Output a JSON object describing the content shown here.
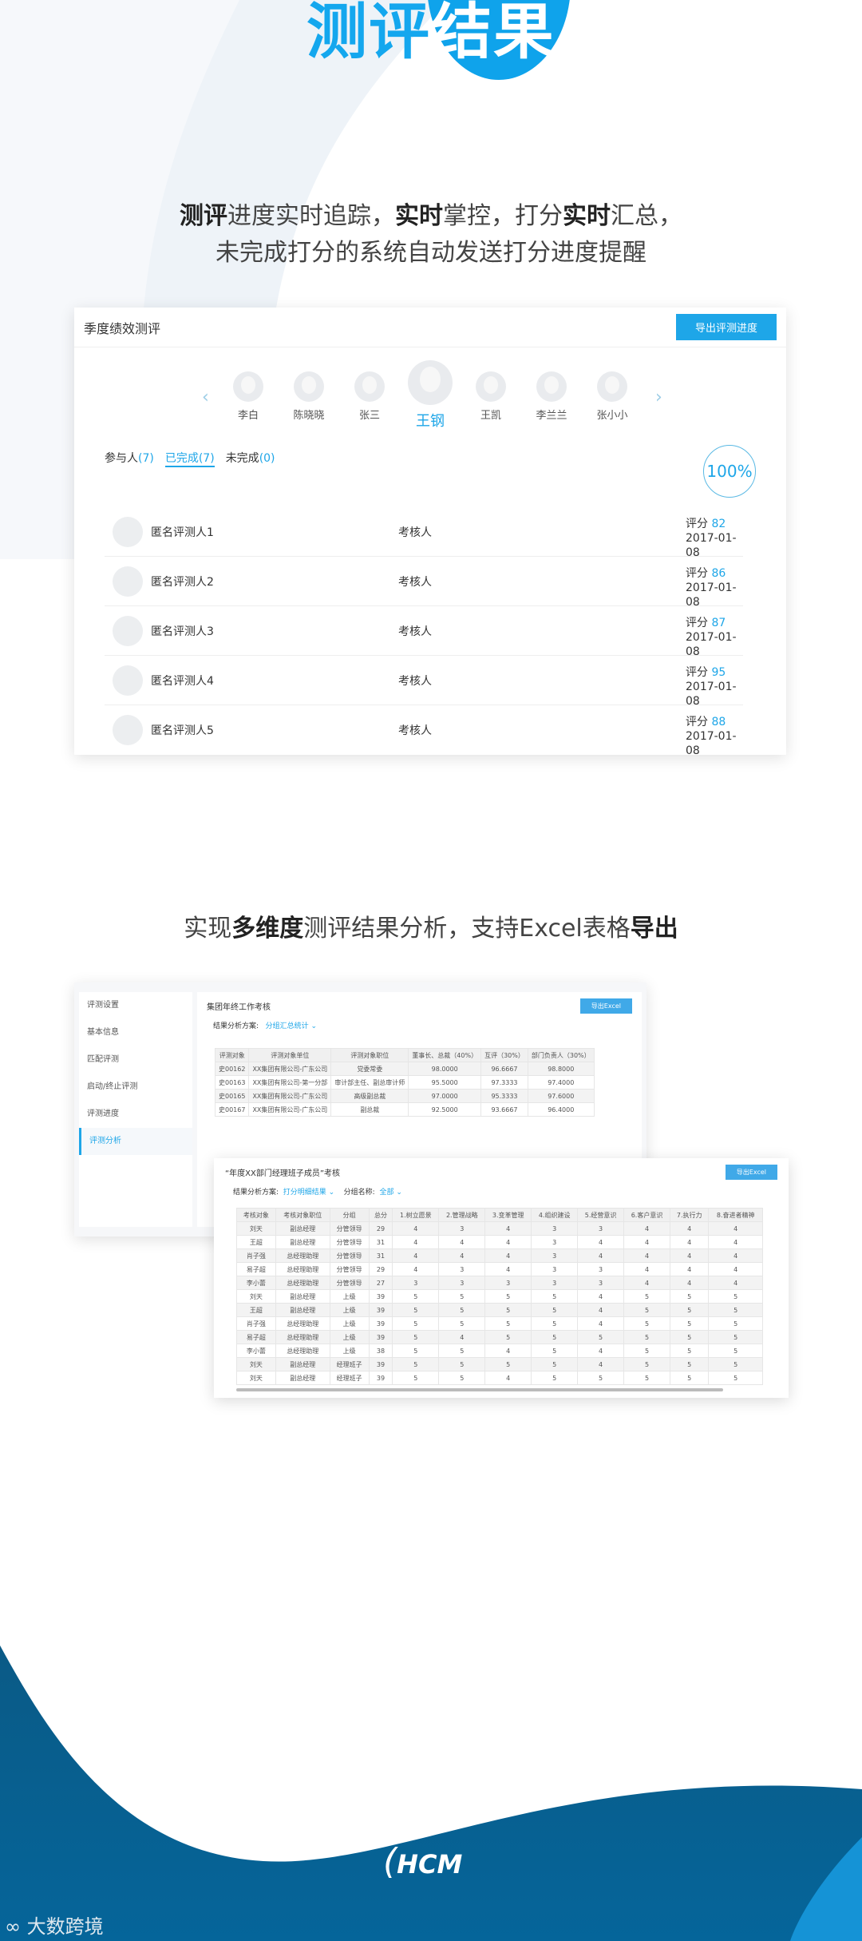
{
  "hero": {
    "title_part1": "测评",
    "title_part2": "结果"
  },
  "intro": {
    "line1": [
      {
        "t": "测评",
        "b": true
      },
      {
        "t": "进度实时追踪，",
        "b": false
      },
      {
        "t": "实时",
        "b": true
      },
      {
        "t": "掌控，打分",
        "b": false
      },
      {
        "t": "实时",
        "b": true
      },
      {
        "t": "汇总，",
        "b": false
      }
    ],
    "line2": "未完成打分的系统自动发送打分进度提醒"
  },
  "card1": {
    "title": "季度绩效测评",
    "export_label": "导出评测进度",
    "people": [
      "李白",
      "陈晓晓",
      "张三",
      "王钢",
      "王凯",
      "李兰兰",
      "张小小"
    ],
    "selected": "王钢",
    "tabs": [
      {
        "label": "参与人",
        "count": "(7)"
      },
      {
        "label": "已完成",
        "count": "(7)"
      },
      {
        "label": "未完成",
        "count": "(0)"
      }
    ],
    "progress": "100%",
    "progress_value": 100,
    "rows": [
      {
        "name": "匿名评测人1",
        "role": "考核人",
        "score_label": "评分",
        "score": "82",
        "date": "2017-01-08"
      },
      {
        "name": "匿名评测人2",
        "role": "考核人",
        "score_label": "评分",
        "score": "86",
        "date": "2017-01-08"
      },
      {
        "name": "匿名评测人3",
        "role": "考核人",
        "score_label": "评分",
        "score": "87",
        "date": "2017-01-08"
      },
      {
        "name": "匿名评测人4",
        "role": "考核人",
        "score_label": "评分",
        "score": "95",
        "date": "2017-01-08"
      },
      {
        "name": "匿名评测人5",
        "role": "考核人",
        "score_label": "评分",
        "score": "88",
        "date": "2017-01-08"
      }
    ]
  },
  "section2": {
    "parts": [
      {
        "t": "实现",
        "b": false
      },
      {
        "t": "多维度",
        "b": true
      },
      {
        "t": "测评结果分析，支持Excel表格",
        "b": false
      },
      {
        "t": "导出",
        "b": true
      }
    ]
  },
  "shot1": {
    "sidebar": [
      "评测设置",
      "基本信息",
      "匹配评测",
      "启动/终止评测",
      "评测进度",
      "评测分析"
    ],
    "active": "评测分析",
    "title": "集团年终工作考核",
    "export": "导出Excel",
    "scheme_label": "结果分析方案:",
    "scheme": "分组汇总统计",
    "headers": [
      "评测对象",
      "评测对象单位",
      "评测对象职位",
      "董事长、总裁（40%）",
      "互评（30%）",
      "部门负责人（30%）"
    ],
    "rows": [
      [
        "史00162",
        "XX集团有限公司-广东公司",
        "党委常委",
        "98.0000",
        "96.6667",
        "98.8000"
      ],
      [
        "史00163",
        "XX集团有限公司-第一分部",
        "审计部主任、副总审计师",
        "95.5000",
        "97.3333",
        "97.4000"
      ],
      [
        "史00165",
        "XX集团有限公司-广东公司",
        "高级副总裁",
        "97.0000",
        "95.3333",
        "97.6000"
      ],
      [
        "史00167",
        "XX集团有限公司-广东公司",
        "副总裁",
        "92.5000",
        "93.6667",
        "96.4000"
      ]
    ]
  },
  "shot2": {
    "title": "“年度XX部门经理班子成员”考核",
    "export": "导出Excel",
    "scheme_label": "结果分析方案:",
    "scheme": "打分明细结果",
    "group_label": "分组名称:",
    "group": "全部",
    "headers": [
      "考核对象",
      "考核对象职位",
      "分组",
      "总分",
      "1.树立愿景",
      "2.管理战略",
      "3.变革管理",
      "4.组织建设",
      "5.经营意识",
      "6.客户意识",
      "7.执行力",
      "8.奋进者精神"
    ],
    "rows": [
      [
        "刘天",
        "副总经理",
        "分管领导",
        "29",
        "4",
        "3",
        "4",
        "3",
        "3",
        "4",
        "4",
        "4"
      ],
      [
        "王超",
        "副总经理",
        "分管领导",
        "31",
        "4",
        "4",
        "4",
        "3",
        "4",
        "4",
        "4",
        "4"
      ],
      [
        "肖子强",
        "总经理助理",
        "分管领导",
        "31",
        "4",
        "4",
        "4",
        "3",
        "4",
        "4",
        "4",
        "4"
      ],
      [
        "易子超",
        "总经理助理",
        "分管领导",
        "29",
        "4",
        "3",
        "4",
        "3",
        "3",
        "4",
        "4",
        "4"
      ],
      [
        "李小蕾",
        "总经理助理",
        "分管领导",
        "27",
        "3",
        "3",
        "3",
        "3",
        "3",
        "4",
        "4",
        "4"
      ],
      [
        "刘天",
        "副总经理",
        "上级",
        "39",
        "5",
        "5",
        "5",
        "5",
        "4",
        "5",
        "5",
        "5"
      ],
      [
        "王超",
        "副总经理",
        "上级",
        "39",
        "5",
        "5",
        "5",
        "5",
        "4",
        "5",
        "5",
        "5"
      ],
      [
        "肖子强",
        "总经理助理",
        "上级",
        "39",
        "5",
        "5",
        "5",
        "5",
        "4",
        "5",
        "5",
        "5"
      ],
      [
        "易子超",
        "总经理助理",
        "上级",
        "39",
        "5",
        "4",
        "5",
        "5",
        "5",
        "5",
        "5",
        "5"
      ],
      [
        "李小蕾",
        "总经理助理",
        "上级",
        "38",
        "5",
        "5",
        "4",
        "5",
        "4",
        "5",
        "5",
        "5"
      ],
      [
        "刘天",
        "副总经理",
        "经理班子",
        "39",
        "5",
        "5",
        "5",
        "5",
        "4",
        "5",
        "5",
        "5"
      ],
      [
        "刘天",
        "副总经理",
        "经理班子",
        "39",
        "5",
        "5",
        "4",
        "5",
        "5",
        "5",
        "5",
        "5"
      ]
    ]
  },
  "footer": {
    "logo": "HCM",
    "watermark": "大数跨境"
  },
  "colors": {
    "accent": "#1ea6e8",
    "footer_blue": "#05608f"
  }
}
